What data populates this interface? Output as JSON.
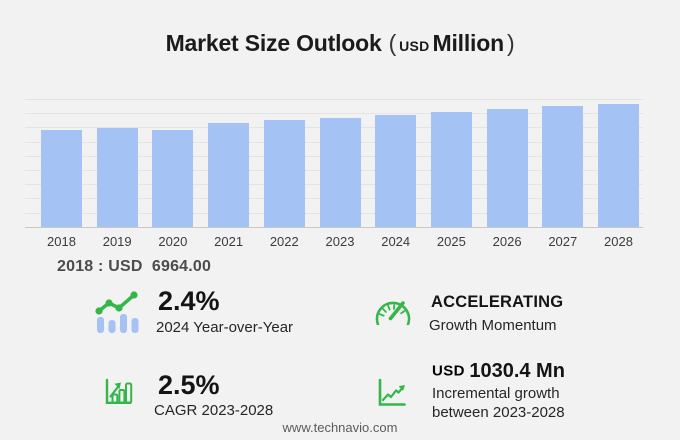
{
  "title": {
    "main": "Market Size Outlook",
    "open_paren": "(",
    "currency": "USD",
    "unit": "Million",
    "close_paren": ")"
  },
  "chart_data": {
    "type": "bar",
    "title": "Market Size Outlook (USD Million)",
    "units": "USD Million",
    "categories": [
      "2018",
      "2019",
      "2020",
      "2021",
      "2022",
      "2023",
      "2024",
      "2025",
      "2026",
      "2027",
      "2028"
    ],
    "values": [
      6964,
      7150,
      6990,
      7490,
      7680,
      7841,
      8029,
      8250,
      8460,
      8700,
      8871
    ],
    "ylim": [
      0,
      9200
    ],
    "grid": true,
    "legend_position": "none",
    "bar_color": "#a4c2f4",
    "annotation": "2018 : USD  6964.00"
  },
  "stats": [
    {
      "id": "yoy",
      "value": "2.4%",
      "label": "2024 Year-over-Year",
      "icon": "bars-with-trend-icon"
    },
    {
      "id": "momentum",
      "value": "ACCELERATING",
      "label": "Growth Momentum",
      "icon": "speedometer-icon"
    },
    {
      "id": "cagr",
      "value": "2.5%",
      "label": "CAGR 2023-2028",
      "icon": "growth-bar-chart-icon"
    },
    {
      "id": "incremental",
      "value_prefix": "USD",
      "value": "1030.4 Mn",
      "label_line1": "Incremental growth",
      "label_line2": "between 2023-2028",
      "icon": "rising-line-chart-icon"
    }
  ],
  "footer": {
    "website": "www.technavio.com"
  },
  "colors": {
    "background": "#f2f2f2",
    "bar": "#a4c2f4",
    "accent_green": "#33b749",
    "grid": "#e4e4e4",
    "axis": "#c8c8c8",
    "text_dark": "#1a1a1a",
    "text_mid": "#262626",
    "text_annotation": "#4c4c4c",
    "text_footer": "#5b5b5b"
  }
}
